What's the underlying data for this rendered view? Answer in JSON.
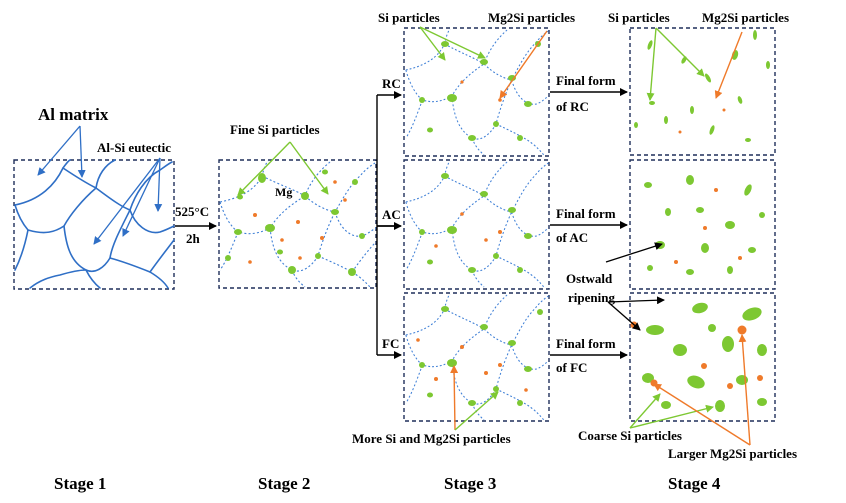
{
  "stages": [
    "Stage 1",
    "Stage 2",
    "Stage 3",
    "Stage 4"
  ],
  "stage1": {
    "al_matrix": "Al matrix",
    "al_si_eutectic": "Al-Si eutectic"
  },
  "treatment": {
    "temperature": "525°C",
    "time": "2h"
  },
  "stage2": {
    "fine_si": "Fine Si particles",
    "mg": "Mg"
  },
  "cooling": {
    "rc": "RC",
    "ac": "AC",
    "fc": "FC"
  },
  "stage3": {
    "si_particles": "Si particles",
    "mg2si_particles": "Mg2Si particles",
    "more_particles": "More Si and Mg2Si particles"
  },
  "final": {
    "rc_line1": "Final form",
    "rc_line2": "of RC",
    "ac_line1": "Final form",
    "ac_line2": "of AC",
    "fc_line1": "Final form",
    "fc_line2": "of FC"
  },
  "stage4": {
    "si_particles": "Si particles",
    "mg2si_particles": "Mg2Si particles",
    "ostwald_line1": "Ostwald",
    "ostwald_line2": "ripening",
    "coarse_si": "Coarse Si particles",
    "larger_mg2si": "Larger Mg2Si particles"
  },
  "colors": {
    "grain_boundary": "#2f6fc6",
    "si_particle": "#7dc832",
    "mg2si_particle": "#ef7a2a",
    "panel_border": "#1f2f5a"
  }
}
